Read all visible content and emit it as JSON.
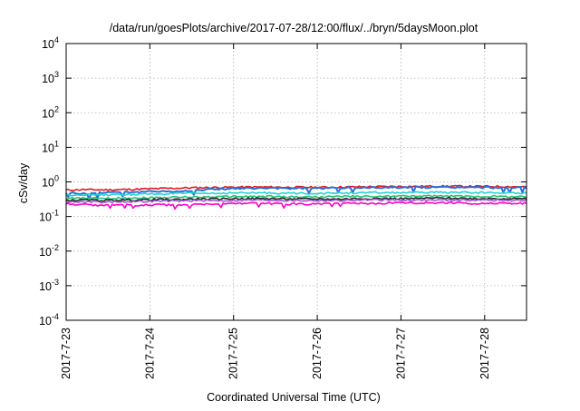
{
  "chart_data": {
    "type": "line",
    "title": "/data/run/goesPlots/archive/2017-07-28/12:00/flux/../bryn/5daysMoon.plot",
    "xlabel": "Coordinated Universal Time (UTC)",
    "ylabel": "cSv/day",
    "y_scale": "log",
    "ylim": [
      0.0001,
      10000
    ],
    "y_ticks": [
      {
        "base": "10",
        "exp": "4",
        "value": 10000
      },
      {
        "base": "10",
        "exp": "3",
        "value": 1000
      },
      {
        "base": "10",
        "exp": "2",
        "value": 100
      },
      {
        "base": "10",
        "exp": "1",
        "value": 10
      },
      {
        "base": "10",
        "exp": "0",
        "value": 1
      },
      {
        "base": "10",
        "exp": "-1",
        "value": 0.1
      },
      {
        "base": "10",
        "exp": "-2",
        "value": 0.01
      },
      {
        "base": "10",
        "exp": "-3",
        "value": 0.001
      },
      {
        "base": "10",
        "exp": "-4",
        "value": 0.0001
      }
    ],
    "xlim": [
      "2017-07-23T00:00",
      "2017-07-28T12:00"
    ],
    "x_ticks": [
      "2017-7-23",
      "2017-7-24",
      "2017-7-25",
      "2017-7-26",
      "2017-7-27",
      "2017-7-28"
    ],
    "grid": true,
    "series": [
      {
        "color": "#e41a1c",
        "values": [
          0.58,
          0.6,
          0.59,
          0.6,
          0.62,
          0.64,
          0.66,
          0.68,
          0.69,
          0.7,
          0.71,
          0.71,
          0.7,
          0.7,
          0.7,
          0.71,
          0.72,
          0.73,
          0.74,
          0.74,
          0.75,
          0.75,
          0.74,
          0.74,
          0.73,
          0.72
        ]
      },
      {
        "color": "#2b6fd6",
        "values": [
          0.5,
          0.45,
          0.5,
          0.52,
          0.5,
          0.55,
          0.52,
          0.58,
          0.62,
          0.64,
          0.65,
          0.66,
          0.65,
          0.66,
          0.66,
          0.67,
          0.68,
          0.69,
          0.7,
          0.7,
          0.7,
          0.7,
          0.69,
          0.69,
          0.68,
          0.68
        ]
      },
      {
        "color": "#22d3d3",
        "values": [
          0.42,
          0.43,
          0.42,
          0.43,
          0.44,
          0.45,
          0.46,
          0.47,
          0.47,
          0.48,
          0.48,
          0.48,
          0.47,
          0.47,
          0.47,
          0.48,
          0.48,
          0.49,
          0.49,
          0.49,
          0.5,
          0.5,
          0.49,
          0.49,
          0.48,
          0.48
        ]
      },
      {
        "color": "#2bbf77",
        "values": [
          0.33,
          0.34,
          0.33,
          0.34,
          0.35,
          0.35,
          0.36,
          0.37,
          0.37,
          0.38,
          0.38,
          0.38,
          0.37,
          0.37,
          0.37,
          0.38,
          0.38,
          0.38,
          0.39,
          0.39,
          0.39,
          0.39,
          0.38,
          0.38,
          0.38,
          0.37
        ]
      },
      {
        "color": "#222222",
        "values": [
          0.29,
          0.3,
          0.29,
          0.3,
          0.3,
          0.31,
          0.31,
          0.32,
          0.32,
          0.33,
          0.33,
          0.33,
          0.32,
          0.32,
          0.32,
          0.32,
          0.33,
          0.33,
          0.33,
          0.33,
          0.34,
          0.34,
          0.33,
          0.33,
          0.33,
          0.32
        ]
      },
      {
        "color": "#9b59d0",
        "values": [
          0.26,
          0.27,
          0.26,
          0.27,
          0.27,
          0.28,
          0.28,
          0.29,
          0.29,
          0.29,
          0.3,
          0.3,
          0.29,
          0.29,
          0.29,
          0.29,
          0.3,
          0.3,
          0.3,
          0.3,
          0.3,
          0.3,
          0.3,
          0.3,
          0.29,
          0.29
        ]
      },
      {
        "color": "#ff00cc",
        "values": [
          0.23,
          0.22,
          0.21,
          0.22,
          0.21,
          0.22,
          0.21,
          0.22,
          0.23,
          0.24,
          0.24,
          0.24,
          0.23,
          0.23,
          0.23,
          0.24,
          0.24,
          0.24,
          0.25,
          0.25,
          0.25,
          0.25,
          0.24,
          0.24,
          0.24,
          0.24
        ]
      }
    ]
  }
}
